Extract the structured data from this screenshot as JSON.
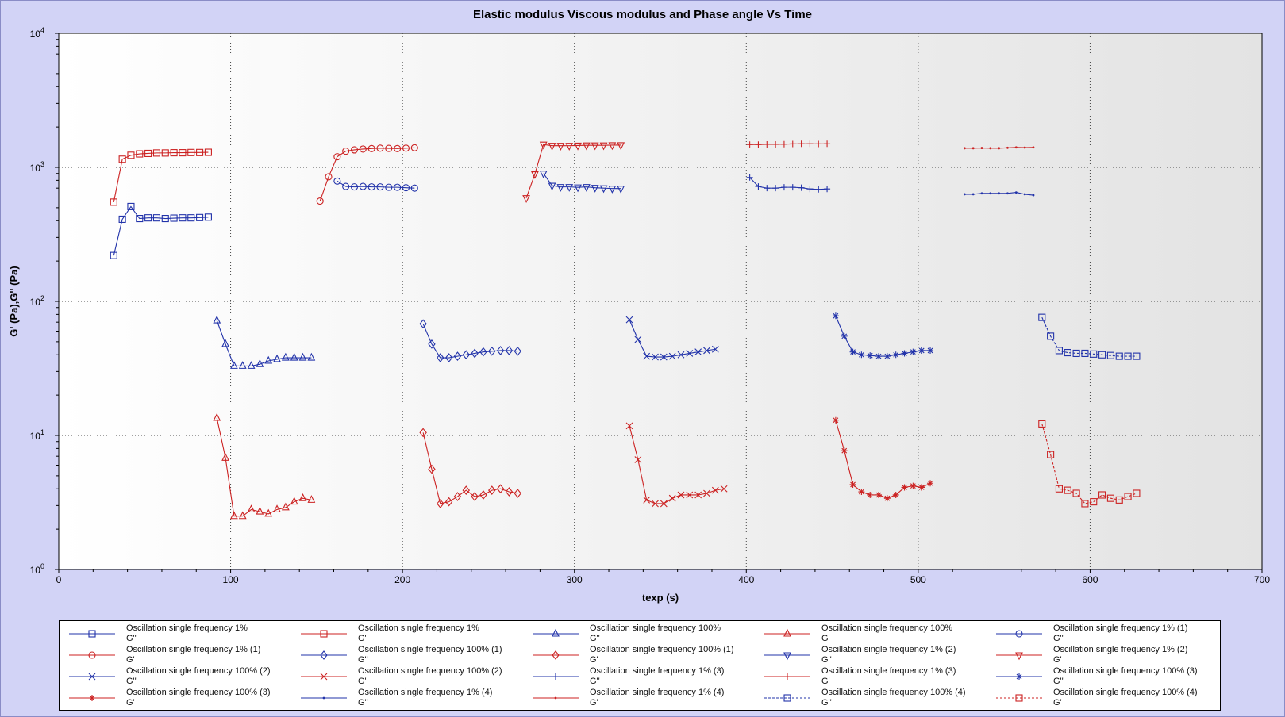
{
  "chart_data": {
    "type": "scatter",
    "title": "Elastic modulus Viscous modulus and Phase angle Vs Time",
    "xlabel": "texp (s)",
    "ylabel": "G' (Pa),G'' (Pa)",
    "xlim": [
      0,
      700
    ],
    "ylim": [
      1,
      10000
    ],
    "yscale": "log",
    "grid": true,
    "legend_position": "bottom",
    "xticks": [
      "0",
      "100",
      "200",
      "300",
      "400",
      "500",
      "600",
      "700"
    ],
    "yticks": [
      {
        "base": "10",
        "exp": "0"
      },
      {
        "base": "10",
        "exp": "1"
      },
      {
        "base": "10",
        "exp": "2"
      },
      {
        "base": "10",
        "exp": "3"
      },
      {
        "base": "10",
        "exp": "4"
      }
    ],
    "colors": {
      "gpp": "#2233aa",
      "gp": "#cc2222"
    },
    "series": [
      {
        "name": "Oscillation single frequency 1%",
        "quantity": "G''",
        "color": "#2233aa",
        "marker": "square",
        "dashed": false,
        "x": [
          32,
          37,
          42,
          47,
          52,
          57,
          62,
          67,
          72,
          77,
          82,
          87
        ],
        "y": [
          220,
          410,
          510,
          415,
          420,
          420,
          415,
          418,
          420,
          420,
          422,
          425
        ]
      },
      {
        "name": "Oscillation single frequency 1%",
        "quantity": "G'",
        "color": "#cc2222",
        "marker": "square",
        "dashed": false,
        "x": [
          32,
          37,
          42,
          47,
          52,
          57,
          62,
          67,
          72,
          77,
          82,
          87
        ],
        "y": [
          550,
          1150,
          1230,
          1260,
          1270,
          1280,
          1280,
          1285,
          1285,
          1290,
          1290,
          1295
        ]
      },
      {
        "name": "Oscillation single frequency 100%",
        "quantity": "G''",
        "color": "#2233aa",
        "marker": "triangle",
        "dashed": false,
        "x": [
          92,
          97,
          102,
          107,
          112,
          117,
          122,
          127,
          132,
          137,
          142,
          147
        ],
        "y": [
          72,
          48,
          33,
          33,
          33,
          34,
          36,
          37,
          38,
          38,
          38,
          38
        ]
      },
      {
        "name": "Oscillation single frequency 100%",
        "quantity": "G'",
        "color": "#cc2222",
        "marker": "triangle",
        "dashed": false,
        "x": [
          92,
          97,
          102,
          107,
          112,
          117,
          122,
          127,
          132,
          137,
          142,
          147
        ],
        "y": [
          13.5,
          6.8,
          2.5,
          2.5,
          2.8,
          2.7,
          2.6,
          2.8,
          2.9,
          3.2,
          3.4,
          3.3
        ]
      },
      {
        "name": "Oscillation single frequency 1% (1)",
        "quantity": "G''",
        "color": "#2233aa",
        "marker": "circle",
        "dashed": false,
        "x": [
          162,
          167,
          172,
          177,
          182,
          187,
          192,
          197,
          202,
          207
        ],
        "y": [
          790,
          720,
          715,
          720,
          715,
          715,
          710,
          710,
          705,
          700
        ]
      },
      {
        "name": "Oscillation single frequency 1% (1)",
        "quantity": "G'",
        "color": "#cc2222",
        "marker": "circle",
        "dashed": false,
        "x": [
          152,
          157,
          162,
          167,
          172,
          177,
          182,
          187,
          192,
          197,
          202,
          207
        ],
        "y": [
          560,
          850,
          1200,
          1320,
          1350,
          1370,
          1380,
          1390,
          1385,
          1380,
          1390,
          1400
        ]
      },
      {
        "name": "Oscillation single frequency 100% (1)",
        "quantity": "G''",
        "color": "#2233aa",
        "marker": "diamond",
        "dashed": false,
        "x": [
          212,
          217,
          222,
          227,
          232,
          237,
          242,
          247,
          252,
          257,
          262,
          267
        ],
        "y": [
          68,
          48,
          38,
          38,
          39,
          40,
          41,
          42,
          42.5,
          43,
          43,
          42.5
        ]
      },
      {
        "name": "Oscillation single frequency 100% (1)",
        "quantity": "G'",
        "color": "#cc2222",
        "marker": "diamond",
        "dashed": false,
        "x": [
          212,
          217,
          222,
          227,
          232,
          237,
          242,
          247,
          252,
          257,
          262,
          267
        ],
        "y": [
          10.5,
          5.6,
          3.1,
          3.2,
          3.5,
          3.9,
          3.5,
          3.6,
          3.9,
          4.0,
          3.8,
          3.7
        ]
      },
      {
        "name": "Oscillation single frequency 1% (2)",
        "quantity": "G''",
        "color": "#2233aa",
        "marker": "triangle-down",
        "dashed": false,
        "x": [
          282,
          287,
          292,
          297,
          302,
          307,
          312,
          317,
          322,
          327
        ],
        "y": [
          900,
          730,
          715,
          715,
          710,
          715,
          705,
          700,
          695,
          695
        ]
      },
      {
        "name": "Oscillation single frequency 1% (2)",
        "quantity": "G'",
        "color": "#cc2222",
        "marker": "triangle-down",
        "dashed": false,
        "x": [
          272,
          277,
          282,
          287,
          292,
          297,
          302,
          307,
          312,
          317,
          322,
          327
        ],
        "y": [
          590,
          890,
          1480,
          1450,
          1450,
          1450,
          1455,
          1460,
          1460,
          1460,
          1465,
          1465
        ]
      },
      {
        "name": "Oscillation single frequency 100% (2)",
        "quantity": "G''",
        "color": "#2233aa",
        "marker": "x",
        "dashed": false,
        "x": [
          332,
          337,
          342,
          347,
          352,
          357,
          362,
          367,
          372,
          377,
          382
        ],
        "y": [
          73,
          52,
          39,
          38.5,
          38.5,
          39,
          40,
          41,
          42,
          43,
          44
        ]
      },
      {
        "name": "Oscillation single frequency 100% (2)",
        "quantity": "G'",
        "color": "#cc2222",
        "marker": "x",
        "dashed": false,
        "x": [
          332,
          337,
          342,
          347,
          352,
          357,
          362,
          367,
          372,
          377,
          382,
          387
        ],
        "y": [
          11.8,
          6.6,
          3.3,
          3.1,
          3.1,
          3.4,
          3.6,
          3.6,
          3.6,
          3.7,
          3.9,
          4.0
        ]
      },
      {
        "name": "Oscillation single frequency 1% (3)",
        "quantity": "G''",
        "color": "#2233aa",
        "marker": "plus",
        "dashed": false,
        "x": [
          402,
          407,
          412,
          417,
          422,
          427,
          432,
          437,
          442,
          447
        ],
        "y": [
          840,
          720,
          700,
          700,
          710,
          710,
          705,
          690,
          685,
          690
        ]
      },
      {
        "name": "Oscillation single frequency 1% (3)",
        "quantity": "G'",
        "color": "#cc2222",
        "marker": "plus",
        "dashed": false,
        "x": [
          402,
          407,
          412,
          417,
          422,
          427,
          432,
          437,
          442,
          447
        ],
        "y": [
          1480,
          1480,
          1485,
          1485,
          1490,
          1495,
          1500,
          1500,
          1495,
          1500
        ]
      },
      {
        "name": "Oscillation single frequency 100% (3)",
        "quantity": "G''",
        "color": "#2233aa",
        "marker": "star",
        "dashed": false,
        "x": [
          452,
          457,
          462,
          467,
          472,
          477,
          482,
          487,
          492,
          497,
          502,
          507
        ],
        "y": [
          78,
          55,
          42,
          40,
          39.5,
          39,
          39,
          40,
          41,
          42,
          43,
          43
        ]
      },
      {
        "name": "Oscillation single frequency 100% (3)",
        "quantity": "G'",
        "color": "#cc2222",
        "marker": "star",
        "dashed": false,
        "x": [
          452,
          457,
          462,
          467,
          472,
          477,
          482,
          487,
          492,
          497,
          502,
          507
        ],
        "y": [
          13,
          7.7,
          4.3,
          3.8,
          3.6,
          3.6,
          3.4,
          3.6,
          4.1,
          4.2,
          4.1,
          4.4
        ]
      },
      {
        "name": "Oscillation single frequency 1% (4)",
        "quantity": "G''",
        "color": "#2233aa",
        "marker": "dot",
        "dashed": false,
        "x": [
          527,
          532,
          537,
          542,
          547,
          552,
          557,
          562,
          567
        ],
        "y": [
          630,
          630,
          640,
          640,
          640,
          640,
          650,
          630,
          620
        ]
      },
      {
        "name": "Oscillation single frequency 1% (4)",
        "quantity": "G'",
        "color": "#cc2222",
        "marker": "dot",
        "dashed": false,
        "x": [
          527,
          532,
          537,
          542,
          547,
          552,
          557,
          562,
          567
        ],
        "y": [
          1390,
          1390,
          1395,
          1390,
          1390,
          1400,
          1410,
          1405,
          1410
        ]
      },
      {
        "name": "Oscillation single frequency 100% (4)",
        "quantity": "G''",
        "color": "#2233aa",
        "marker": "square",
        "dashed": true,
        "x": [
          572,
          577,
          582,
          587,
          592,
          597,
          602,
          607,
          612,
          617,
          622,
          627
        ],
        "y": [
          76,
          55,
          43,
          41.5,
          41,
          41,
          40.5,
          40,
          39.5,
          39,
          39,
          39
        ]
      },
      {
        "name": "Oscillation single frequency 100% (4)",
        "quantity": "G'",
        "color": "#cc2222",
        "marker": "square",
        "dashed": true,
        "x": [
          572,
          577,
          582,
          587,
          592,
          597,
          602,
          607,
          612,
          617,
          622,
          627
        ],
        "y": [
          12.2,
          7.2,
          4.0,
          3.9,
          3.7,
          3.1,
          3.2,
          3.6,
          3.4,
          3.3,
          3.5,
          3.7
        ]
      }
    ]
  }
}
